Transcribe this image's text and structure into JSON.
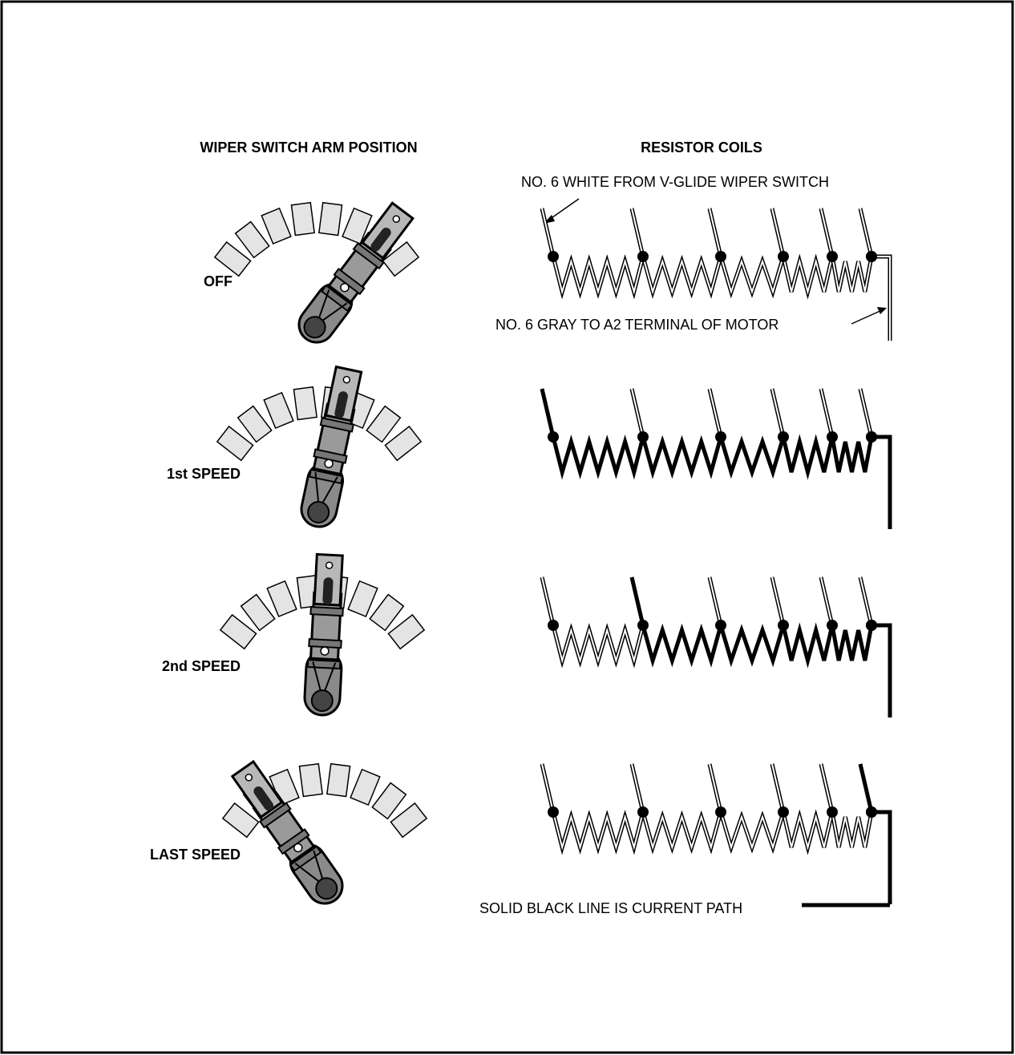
{
  "headers": {
    "left": "WIPER SWITCH ARM POSITION",
    "right": "RESISTOR COILS"
  },
  "positions": [
    {
      "label": "OFF"
    },
    {
      "label": "1st SPEED"
    },
    {
      "label": "2nd SPEED"
    },
    {
      "label": "LAST SPEED"
    }
  ],
  "annotations": {
    "input": "NO. 6 WHITE FROM V-GLIDE WIPER SWITCH",
    "output": "NO. 6 GRAY TO A2 TERMINAL OF MOTOR"
  },
  "legend": "SOLID BLACK LINE IS CURRENT PATH"
}
